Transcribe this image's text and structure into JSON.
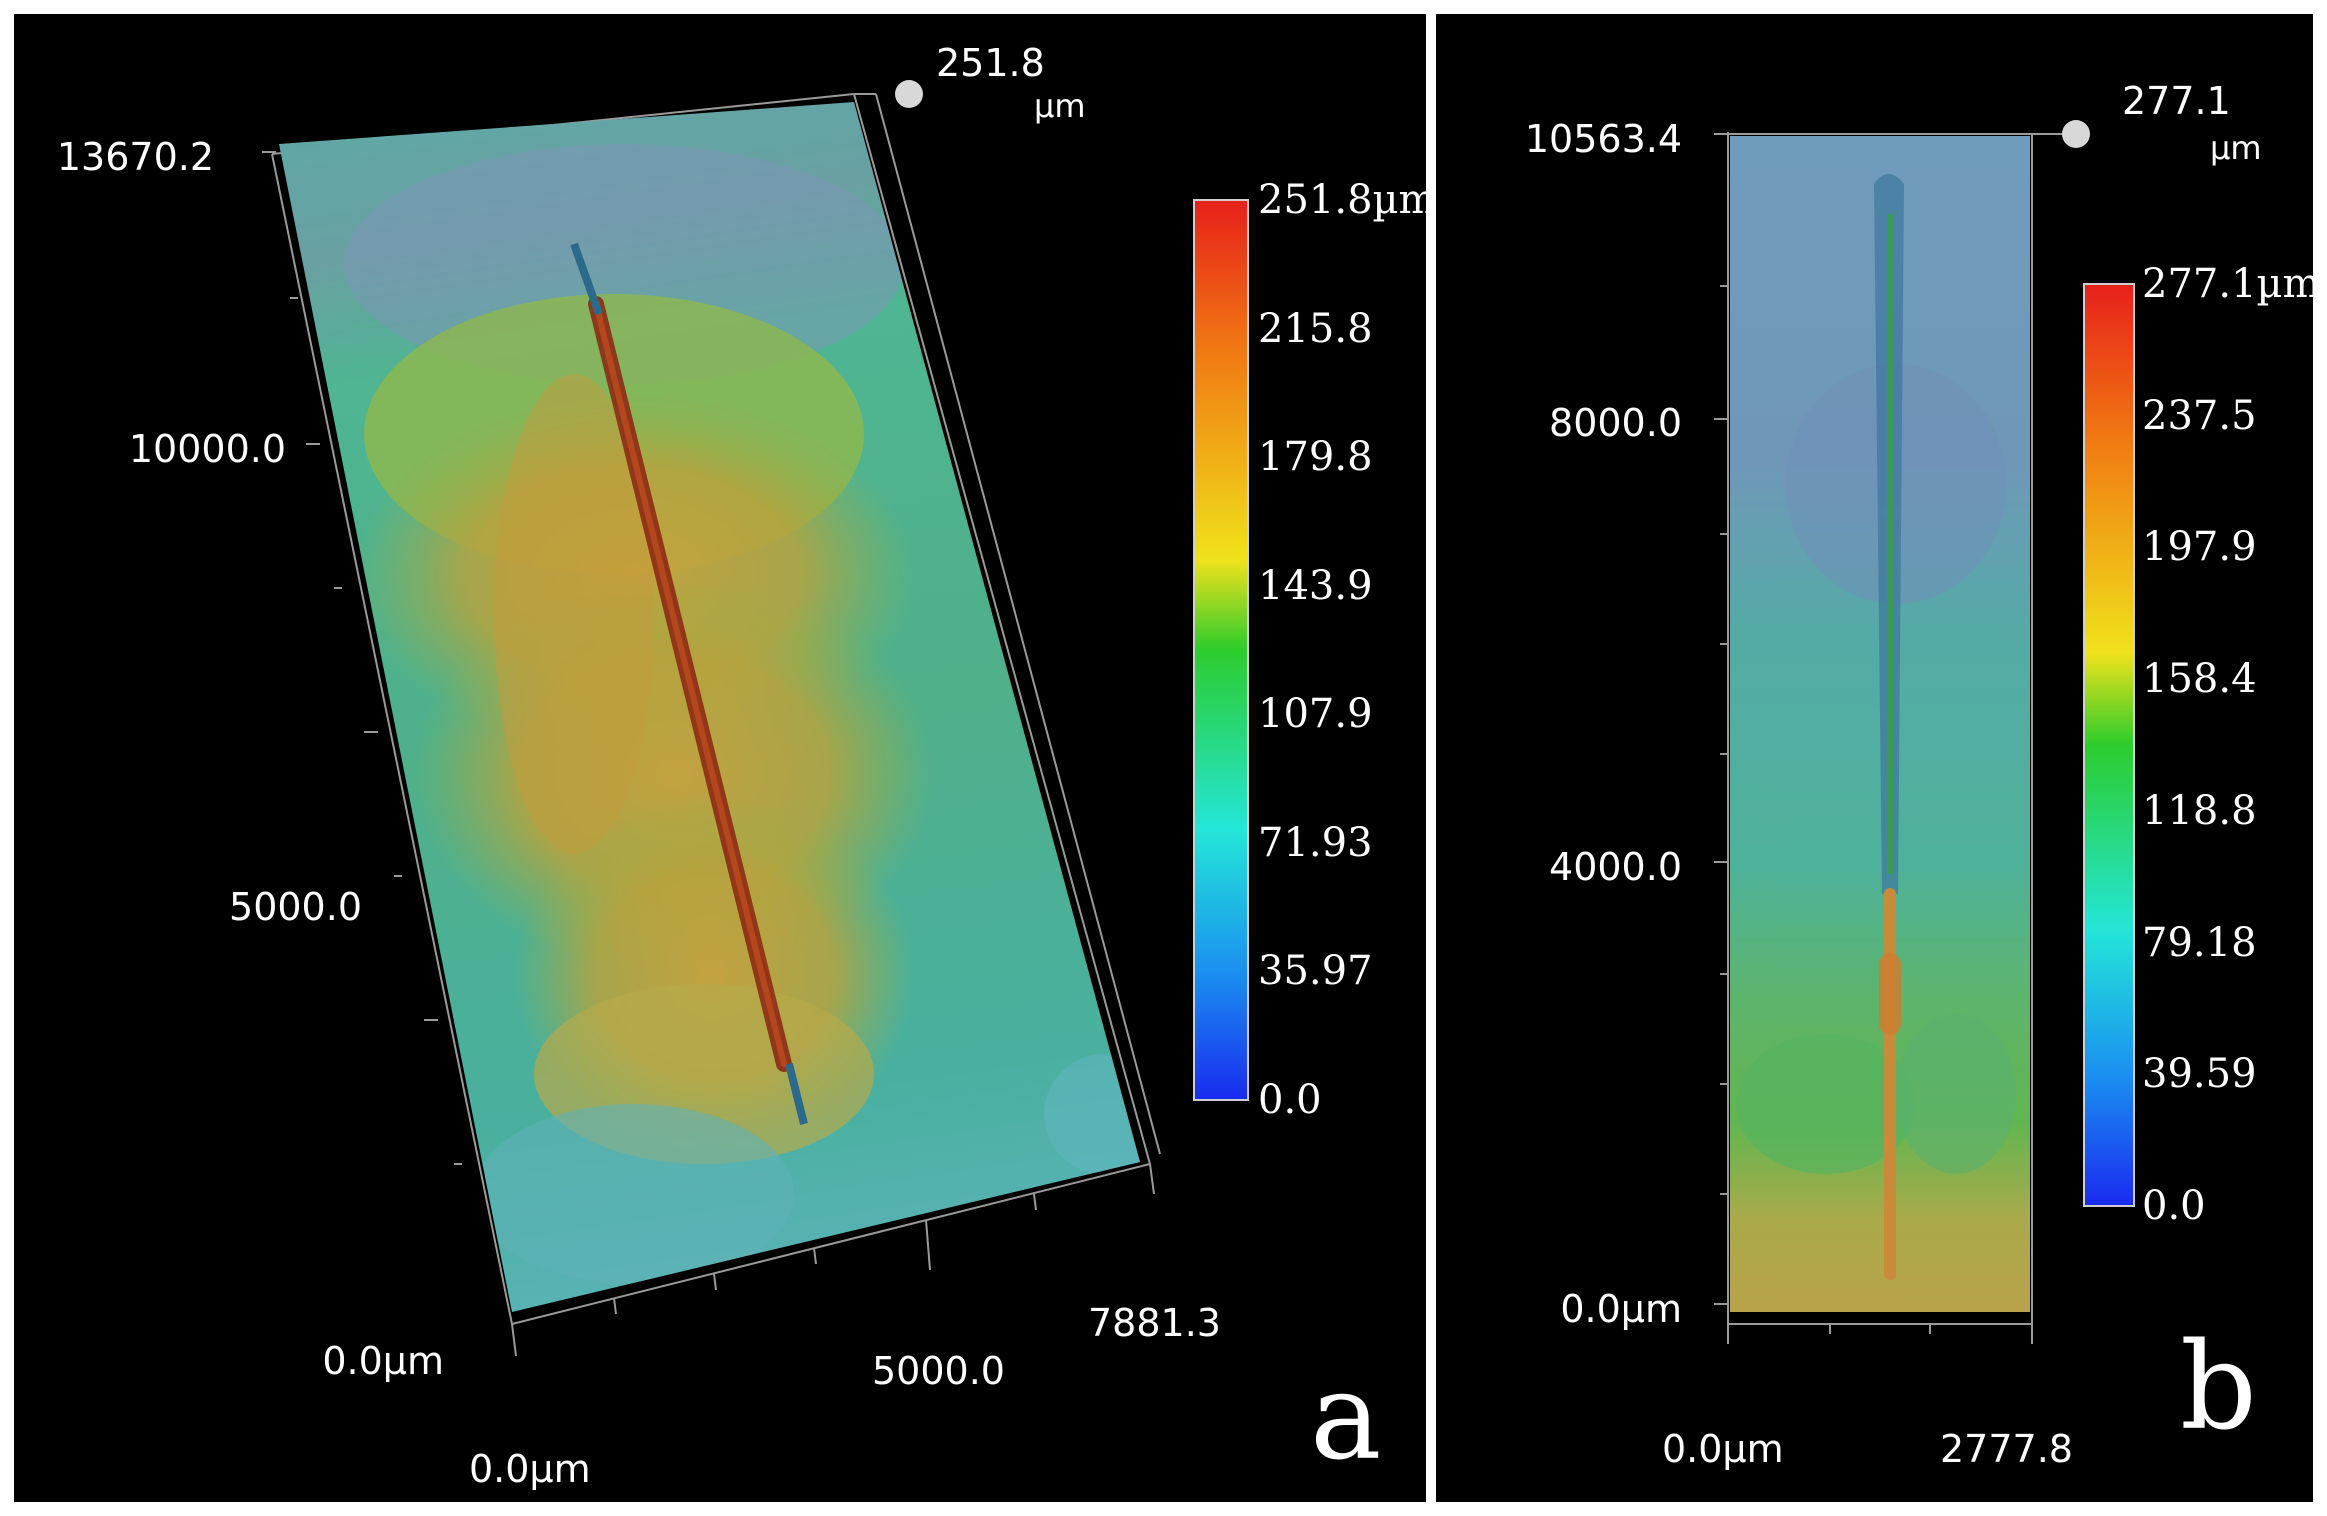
{
  "panels": {
    "a": {
      "letter": "a",
      "y_axis_ticks": [
        "13670.2",
        "10000.0",
        "5000.0",
        "0.0µm"
      ],
      "x_axis_ticks": [
        "0.0µm",
        "5000.0",
        "7881.3"
      ],
      "z_max_value": "251.8",
      "z_max_unit": "µm",
      "colorbar_labels": [
        "251.8µm",
        "215.8",
        "179.8",
        "143.9",
        "107.9",
        "71.93",
        "35.97",
        "0.0"
      ]
    },
    "b": {
      "letter": "b",
      "y_axis_ticks": [
        "10563.4",
        "8000.0",
        "4000.0",
        "0.0µm"
      ],
      "x_axis_ticks": [
        "0.0µm",
        "2777.8"
      ],
      "z_max_value": "277.1",
      "z_max_unit": "µm",
      "colorbar_labels": [
        "277.1µm",
        "237.5",
        "197.9",
        "158.4",
        "118.8",
        "79.18",
        "39.59",
        "0.0"
      ]
    }
  },
  "colors": {
    "background": "#000000",
    "label": "#ffffff",
    "colormap": [
      "#e8201a",
      "#f07a12",
      "#f0e21a",
      "#2ccc2c",
      "#23e6d8",
      "#1a8ff0",
      "#1a2af0"
    ]
  }
}
